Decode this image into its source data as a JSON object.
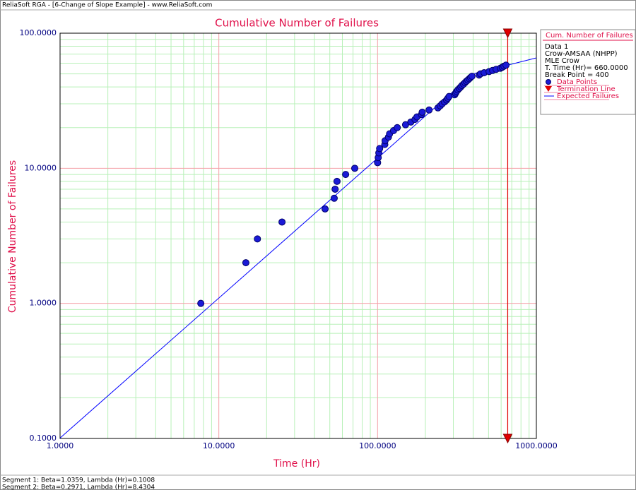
{
  "window_title": "ReliaSoft RGA - [6-Change of Slope Example] - www.ReliaSoft.com",
  "footer": [
    "Segment 1: Beta=1.0359, Lambda (Hr)=0.1008",
    "Segment 2: Beta=0.2971, Lambda (Hr)=8.4304"
  ],
  "chart_data": {
    "type": "scatter",
    "title": "Cumulative Number of Failures",
    "x_label": "Time (Hr)",
    "y_label": "Cumulative Number of Failures",
    "xlog": true,
    "ylog": true,
    "xlim": [
      1,
      1000
    ],
    "ylim": [
      0.1,
      100
    ],
    "xticks": [
      {
        "value": 1,
        "label": "1.0000"
      },
      {
        "value": 10,
        "label": "10.0000"
      },
      {
        "value": 100,
        "label": "100.0000"
      },
      {
        "value": 1000,
        "label": "1000.0000"
      }
    ],
    "yticks": [
      {
        "value": 0.1,
        "label": "0.1000"
      },
      {
        "value": 1,
        "label": "1.0000"
      },
      {
        "value": 10,
        "label": "10.0000"
      },
      {
        "value": 100,
        "label": "100.0000"
      }
    ],
    "grid": true,
    "minor_grid": true,
    "legend_title": "Cum. Number of Failures",
    "legend_info": [
      "Data 1",
      "Crow-AMSAA (NHPP)",
      "MLE Crow",
      "T. Time (Hr)= 660.0000",
      "Break Point = 400"
    ],
    "series": [
      {
        "name": "Data Points",
        "type": "scatter",
        "color": "#1a1ad6",
        "x": [
          7.7,
          14.8,
          17.5,
          25,
          46.7,
          53.3,
          54,
          55.5,
          62.9,
          71.8,
          100,
          100.9,
          101.8,
          103,
          111,
          111.5,
          117,
          119,
          126,
          133,
          150,
          162,
          172,
          177,
          189,
          191,
          211,
          240,
          248,
          255,
          264,
          272,
          277,
          282,
          306,
          310,
          314,
          320,
          327,
          334,
          340,
          348,
          355,
          362,
          370,
          378,
          385,
          393,
          436,
          445,
          469,
          504,
          530,
          558,
          593,
          610,
          625,
          644
        ],
        "values": [
          1,
          2,
          3,
          4,
          5,
          6,
          7,
          8,
          9,
          10,
          11,
          12,
          13,
          14,
          15,
          16,
          17,
          18,
          19,
          20,
          21,
          22,
          23,
          24,
          25,
          26,
          27,
          28,
          29,
          30,
          31,
          32,
          33,
          34,
          35,
          36,
          37,
          38,
          39,
          40,
          41,
          42,
          43,
          44,
          45,
          46,
          47,
          48,
          49,
          50,
          51,
          52,
          53,
          54,
          55,
          56,
          57,
          58
        ]
      },
      {
        "name": "Expected Failures",
        "type": "line",
        "color": "#0000ff",
        "x": [
          1,
          400,
          1000
        ],
        "values": [
          0.1008,
          50.0,
          65.6
        ]
      }
    ],
    "termination": {
      "name": "Termination Line",
      "x": 660,
      "color": "#e00000"
    }
  }
}
